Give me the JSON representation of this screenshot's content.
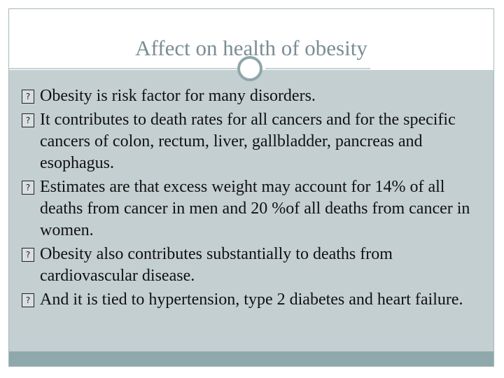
{
  "slide": {
    "title": "Affect on health of obesity",
    "bullets": [
      "Obesity is risk factor for many disorders.",
      "It contributes to death rates for all cancers and for the specific cancers of colon, rectum, liver, gallbladder, pancreas and esophagus.",
      "Estimates are that excess weight may account for 14% of all deaths from cancer in men and 20 %of all deaths from cancer in women.",
      "Obesity also contributes substantially to deaths from cardiovascular disease.",
      "And it is tied to hypertension, type 2 diabetes and heart failure."
    ],
    "bullet_icon": "missing-glyph-box"
  },
  "colors": {
    "title": "#7a8d95",
    "content_background": "#c4cfd2",
    "footer_bar": "#8fa8ab",
    "circle": "#8fa6aa"
  }
}
